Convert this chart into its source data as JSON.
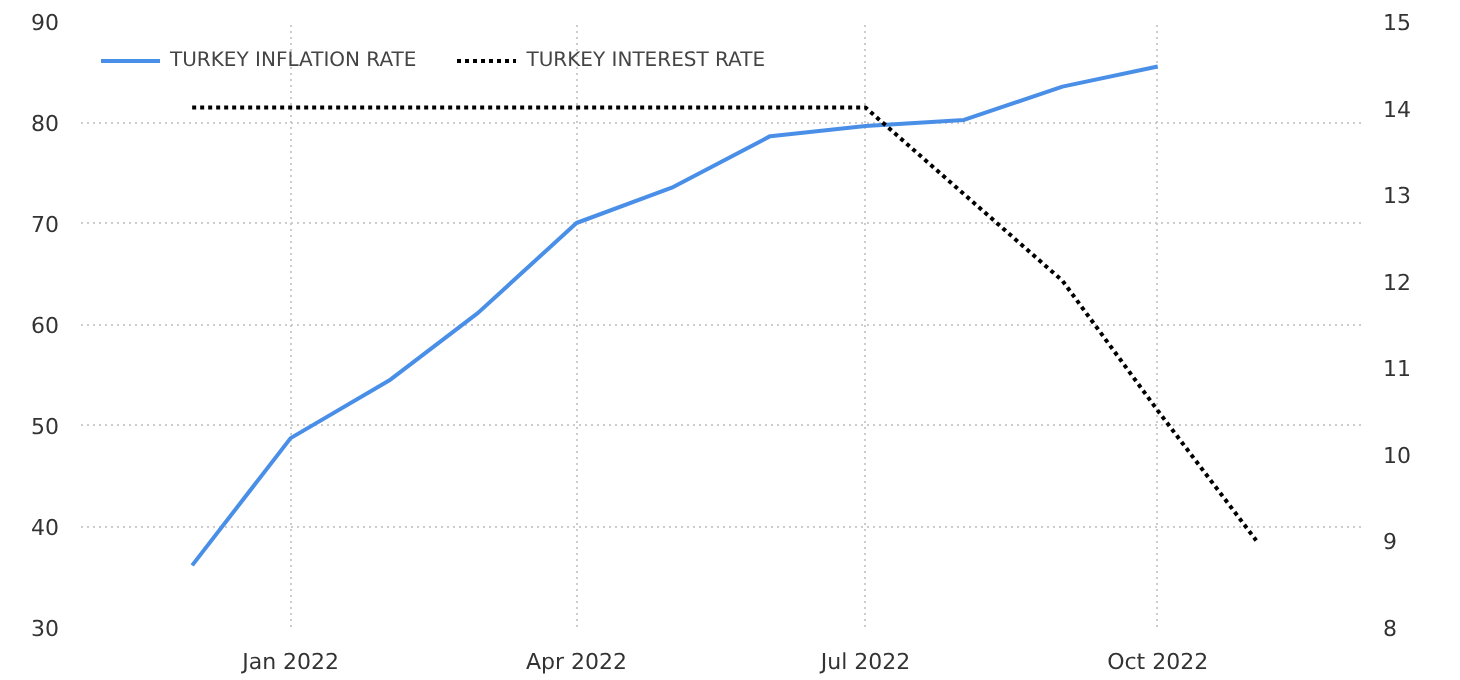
{
  "chart_data": {
    "type": "line",
    "series": [
      {
        "name": "TURKEY INFLATION RATE",
        "color": "#4a8fe7",
        "line_style": "solid",
        "x": [
          "2021-12",
          "2022-01",
          "2022-02",
          "2022-03",
          "2022-04",
          "2022-05",
          "2022-06",
          "2022-07",
          "2022-08",
          "2022-09",
          "2022-10"
        ],
        "values": [
          36.1,
          48.7,
          54.4,
          61.1,
          70.0,
          73.5,
          78.6,
          79.6,
          80.2,
          83.5,
          85.5
        ]
      },
      {
        "name": "TURKEY INTEREST RATE",
        "color": "#000000",
        "line_style": "dotted",
        "axis": "y2",
        "x": [
          "2021-12",
          "2022-01",
          "2022-02",
          "2022-03",
          "2022-04",
          "2022-05",
          "2022-06",
          "2022-07",
          "2022-08",
          "2022-09",
          "2022-10",
          "2022-11"
        ],
        "values": [
          14,
          14,
          14,
          14,
          14,
          14,
          14,
          14,
          13,
          12,
          10.5,
          9
        ]
      }
    ],
    "xlim": [
      "2021-10-27",
      "2022-12-04"
    ],
    "xticks": [
      {
        "value": "2022-01",
        "label": "Jan 2022"
      },
      {
        "value": "2022-04",
        "label": "Apr 2022"
      },
      {
        "value": "2022-07",
        "label": "Jul 2022"
      },
      {
        "value": "2022-10",
        "label": "Oct 2022"
      }
    ],
    "ylim": [
      30,
      90
    ],
    "yticks": [
      30,
      40,
      50,
      60,
      70,
      80,
      90
    ],
    "y2lim": [
      8,
      15
    ],
    "y2ticks": [
      8,
      9,
      10,
      11,
      12,
      13,
      14,
      15
    ],
    "grid": true,
    "legend": "top left",
    "marker": "none"
  }
}
